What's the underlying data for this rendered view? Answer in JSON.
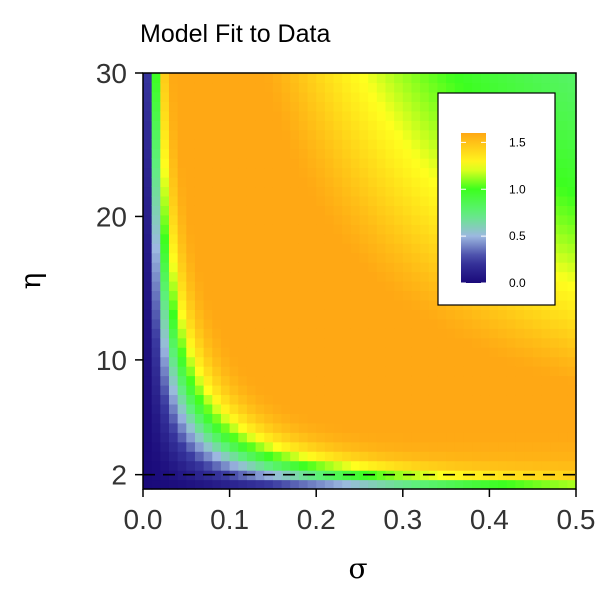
{
  "chart_data": {
    "type": "heatmap",
    "title": "Model Fit to Data",
    "xlabel": "σ",
    "ylabel": "η",
    "xlim": [
      0.0,
      0.5
    ],
    "ylim": [
      1.0,
      30.0
    ],
    "x_ticks": [
      0.0,
      0.1,
      0.2,
      0.3,
      0.4,
      0.5
    ],
    "x_tick_labels": [
      "0.0",
      "0.1",
      "0.2",
      "0.3",
      "0.4",
      "0.5"
    ],
    "y_ticks": [
      2,
      10,
      20,
      30
    ],
    "y_tick_labels": [
      "2",
      "10",
      "20",
      "30"
    ],
    "value_range": [
      0.0,
      1.6
    ],
    "legend": {
      "placement": "top-right inside",
      "ticks": [
        0.0,
        0.5,
        1.0,
        1.5
      ],
      "tick_labels": [
        "0.0",
        "0.5",
        "1.0",
        "1.5"
      ]
    },
    "colorscale": [
      {
        "value": 0.0,
        "color": "#1a0a7a"
      },
      {
        "value": 0.25,
        "color": "#3a3aa0"
      },
      {
        "value": 0.5,
        "color": "#9cb8e0"
      },
      {
        "value": 0.75,
        "color": "#5ef07a"
      },
      {
        "value": 1.0,
        "color": "#3cff1e"
      },
      {
        "value": 1.25,
        "color": "#ffff1e"
      },
      {
        "value": 1.6,
        "color": "#ffa814"
      }
    ],
    "reference_line": {
      "axis": "y",
      "value": 2,
      "style": "dashed"
    },
    "grid": false,
    "landmarks": [
      {
        "sigma": 0.05,
        "eta": 20,
        "value": 1.0
      },
      {
        "sigma": 0.1,
        "eta": 10,
        "value": 1.0
      },
      {
        "sigma": 0.2,
        "eta": 5,
        "value": 1.0
      },
      {
        "sigma": 0.35,
        "eta": 3.5,
        "value": 1.0
      },
      {
        "sigma": 0.5,
        "eta": 2.5,
        "value": 1.0
      },
      {
        "sigma": 0.15,
        "eta": 27,
        "value": 1.6
      },
      {
        "sigma": 0.3,
        "eta": 12,
        "value": 1.6
      },
      {
        "sigma": 0.45,
        "eta": 7,
        "value": 1.5
      },
      {
        "sigma": 0.01,
        "eta": 15,
        "value": 0.1
      }
    ]
  }
}
